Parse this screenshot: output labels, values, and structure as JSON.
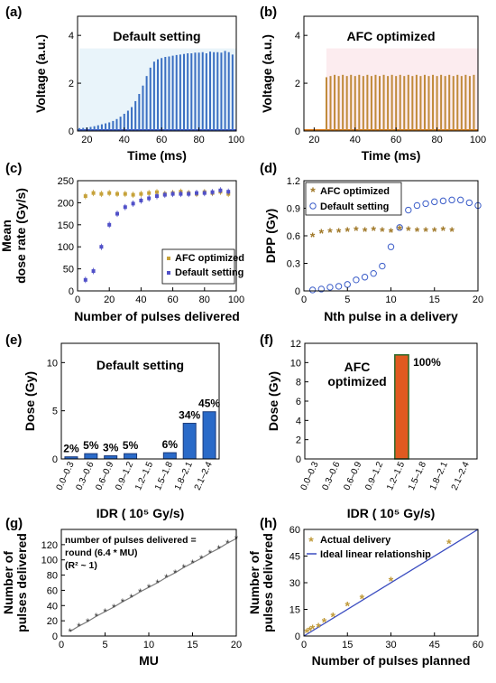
{
  "chart_data": [
    {
      "panel": "(a)",
      "type": "line",
      "title": "Default setting",
      "xlabel": "Time (ms)",
      "ylabel": "Voltage (a.u.)",
      "xlim": [
        15,
        100
      ],
      "ylim": [
        0,
        4.8
      ],
      "xticks": [
        20,
        40,
        60,
        80,
        100
      ],
      "yticks": [
        0,
        2,
        4
      ],
      "colors": {
        "pulse": "#3a6fc2",
        "baseline": "#4050c0",
        "glow": "#bfe0f2"
      },
      "pulse_times": [
        16,
        18,
        20,
        22,
        24,
        26,
        28,
        30,
        32,
        34,
        36,
        38,
        40,
        42,
        44,
        46,
        48,
        50,
        52,
        54,
        56,
        58,
        60,
        62,
        64,
        66,
        68,
        70,
        72,
        74,
        76,
        78,
        80,
        82,
        84,
        86,
        88,
        90,
        92,
        94,
        96,
        98
      ],
      "pulse_heights": [
        0.12,
        0.13,
        0.15,
        0.17,
        0.2,
        0.24,
        0.28,
        0.32,
        0.36,
        0.42,
        0.5,
        0.6,
        0.72,
        0.85,
        1.0,
        1.25,
        1.55,
        1.9,
        2.3,
        2.65,
        2.9,
        3.0,
        3.05,
        3.1,
        3.12,
        3.15,
        3.18,
        3.2,
        3.22,
        3.25,
        3.25,
        3.28,
        3.28,
        3.3,
        3.25,
        3.32,
        3.3,
        3.3,
        3.28,
        3.35,
        3.3,
        3.2
      ]
    },
    {
      "panel": "(b)",
      "type": "line",
      "title": "AFC optimized",
      "xlabel": "Time (ms)",
      "ylabel": "Voltage (a.u.)",
      "xlim": [
        15,
        100
      ],
      "ylim": [
        0,
        4.8
      ],
      "xticks": [
        20,
        40,
        60,
        80,
        100
      ],
      "yticks": [
        0,
        2,
        4
      ],
      "colors": {
        "pulse": "#c08a3a",
        "baseline": "#d97a1a",
        "glow": "#f5c8d0"
      },
      "pulse_times": [
        26,
        28,
        30,
        32,
        34,
        36,
        38,
        40,
        42,
        44,
        46,
        48,
        50,
        52,
        54,
        56,
        58,
        60,
        62,
        64,
        66,
        68,
        70,
        72,
        74,
        76,
        78,
        80,
        82,
        84,
        86,
        88,
        90,
        92,
        94,
        96,
        98
      ],
      "pulse_heights": [
        2.25,
        2.3,
        2.35,
        2.3,
        2.35,
        2.3,
        2.35,
        2.3,
        2.35,
        2.3,
        2.35,
        2.3,
        2.35,
        2.3,
        2.35,
        2.3,
        2.35,
        2.3,
        2.35,
        2.3,
        2.35,
        2.3,
        2.35,
        2.3,
        2.35,
        2.3,
        2.35,
        2.3,
        2.35,
        2.3,
        2.35,
        2.3,
        2.35,
        2.3,
        2.35,
        2.3,
        2.35
      ]
    },
    {
      "panel": "(c)",
      "type": "scatter",
      "xlabel": "Number of pulses delivered",
      "ylabel_lines": [
        "Mean",
        "dose rate (Gy/s)"
      ],
      "xlim": [
        0,
        100
      ],
      "ylim": [
        0,
        250
      ],
      "xticks": [
        0,
        20,
        40,
        60,
        80,
        100
      ],
      "yticks": [
        0,
        50,
        100,
        150,
        200,
        250
      ],
      "legend": {
        "placement": "lower-right"
      },
      "series": [
        {
          "name": "AFC optimized",
          "color": "#c6a23a",
          "x": [
            5,
            10,
            15,
            20,
            25,
            30,
            35,
            40,
            45,
            50,
            55,
            60,
            65,
            70,
            75,
            80,
            85,
            90,
            95
          ],
          "y": [
            215,
            222,
            220,
            222,
            220,
            220,
            218,
            220,
            222,
            224,
            220,
            222,
            225,
            222,
            220,
            224,
            222,
            225,
            220
          ]
        },
        {
          "name": "Default setting",
          "color": "#5050c8",
          "x": [
            5,
            10,
            15,
            20,
            25,
            30,
            35,
            40,
            45,
            50,
            55,
            60,
            65,
            70,
            75,
            80,
            85,
            90,
            95
          ],
          "y": [
            25,
            45,
            100,
            150,
            175,
            190,
            198,
            205,
            210,
            215,
            218,
            220,
            220,
            220,
            222,
            222,
            224,
            228,
            225
          ]
        }
      ]
    },
    {
      "panel": "(d)",
      "type": "scatter",
      "xlabel": "Nth pulse in a delivery",
      "ylabel": "DPP (Gy)",
      "xlim": [
        0,
        20
      ],
      "ylim": [
        0,
        1.2
      ],
      "xticks": [
        0,
        5,
        10,
        15,
        20
      ],
      "yticks": [
        0,
        0.3,
        0.6,
        0.9,
        1.2
      ],
      "legend": {
        "placement": "top-left"
      },
      "series": [
        {
          "name": "AFC optimized",
          "color": "#a07828",
          "x": [
            1,
            2,
            3,
            4,
            5,
            6,
            7,
            8,
            9,
            10,
            11,
            12,
            13,
            14,
            15,
            16,
            17
          ],
          "y": [
            0.58,
            0.62,
            0.63,
            0.63,
            0.64,
            0.65,
            0.64,
            0.65,
            0.64,
            0.63,
            0.66,
            0.65,
            0.64,
            0.64,
            0.64,
            0.65,
            0.64
          ]
        },
        {
          "name": "Default setting",
          "color": "#3a5cc8",
          "x": [
            1,
            2,
            3,
            4,
            5,
            6,
            7,
            8,
            9,
            10,
            11,
            12,
            13,
            14,
            15,
            16,
            17,
            18,
            19,
            20
          ],
          "y": [
            0.01,
            0.02,
            0.04,
            0.05,
            0.07,
            0.12,
            0.15,
            0.19,
            0.27,
            0.48,
            0.69,
            0.88,
            0.93,
            0.95,
            0.97,
            0.98,
            0.99,
            0.99,
            0.96,
            0.93
          ]
        }
      ]
    },
    {
      "panel": "(e)",
      "type": "bar",
      "title": "Default setting",
      "xlabel": "IDR (  10⁵ Gy/s)",
      "ylabel": "Dose (Gy)",
      "ylim": [
        0,
        12
      ],
      "yticks": [
        0,
        5,
        10
      ],
      "categories": [
        "0.0–0.3",
        "0.3–0.6",
        "0.6–0.9",
        "0.9–1.2",
        "1.2–1.5",
        "1.5–1.8",
        "1.8–2.1",
        "2.1–2.4"
      ],
      "values": [
        0.22,
        0.55,
        0.33,
        0.55,
        0.0,
        0.65,
        3.7,
        4.9
      ],
      "data_labels": [
        "2%",
        "5%",
        "3%",
        "5%",
        "",
        "6%",
        "34%",
        "45%"
      ],
      "color": "#2a6ac8"
    },
    {
      "panel": "(f)",
      "type": "bar",
      "title_lines": [
        "AFC",
        "optimized"
      ],
      "xlabel": "IDR (  10⁵ Gy/s)",
      "ylabel": "Dose (Gy)",
      "ylim": [
        0,
        12
      ],
      "yticks": [
        0,
        2,
        4,
        6,
        8,
        10,
        12
      ],
      "categories": [
        "0.0–0.3",
        "0.3–0.6",
        "0.6–0.9",
        "0.9–1.2",
        "1.2–1.5",
        "1.5–1.8",
        "1.8–2.1",
        "2.1–2.4"
      ],
      "values": [
        0,
        0,
        0,
        0,
        10.8,
        0,
        0,
        0
      ],
      "data_labels": [
        "",
        "",
        "",
        "",
        "100%",
        "",
        "",
        ""
      ],
      "color": "#e05a20"
    },
    {
      "panel": "(g)",
      "type": "line",
      "xlabel": "MU",
      "ylabel_lines": [
        "Number of",
        "pulses delivered"
      ],
      "xlim": [
        0,
        20
      ],
      "ylim": [
        0,
        140
      ],
      "xticks": [
        0,
        5,
        10,
        15,
        20
      ],
      "yticks": [
        0,
        20,
        40,
        60,
        80,
        100,
        120
      ],
      "annotation_lines": [
        "number of pulses delivered =",
        "round (6.4 * MU)",
        "(R² ~ 1)"
      ],
      "color": "#7a7a7a",
      "x": [
        1,
        2,
        3,
        4,
        5,
        6,
        7,
        8,
        9,
        10,
        11,
        12,
        13,
        14,
        15,
        16,
        17,
        18,
        19,
        20
      ],
      "y": [
        6,
        13,
        19,
        26,
        32,
        38,
        45,
        51,
        58,
        64,
        70,
        77,
        83,
        90,
        96,
        102,
        109,
        115,
        122,
        128
      ]
    },
    {
      "panel": "(h)",
      "type": "scatter",
      "xlabel": "Number of pulses planned",
      "ylabel_lines": [
        "Number of",
        "pulses delivered"
      ],
      "xlim": [
        0,
        60
      ],
      "ylim": [
        0,
        60
      ],
      "xticks": [
        0,
        15,
        30,
        45,
        60
      ],
      "yticks": [
        0,
        15,
        30,
        45,
        60
      ],
      "legend": {
        "placement": "top-left"
      },
      "series": [
        {
          "name": "Actual delivery",
          "color": "#c09a3a",
          "x": [
            1,
            2,
            3,
            5,
            7,
            10,
            15,
            20,
            30,
            50
          ],
          "y": [
            2,
            3,
            4,
            5,
            8,
            11,
            17,
            21,
            31,
            52
          ]
        },
        {
          "name": "Ideal linear relationship",
          "color": "#3a4cc0",
          "type": "line",
          "x": [
            0,
            60
          ],
          "y": [
            0,
            60
          ]
        }
      ]
    }
  ]
}
